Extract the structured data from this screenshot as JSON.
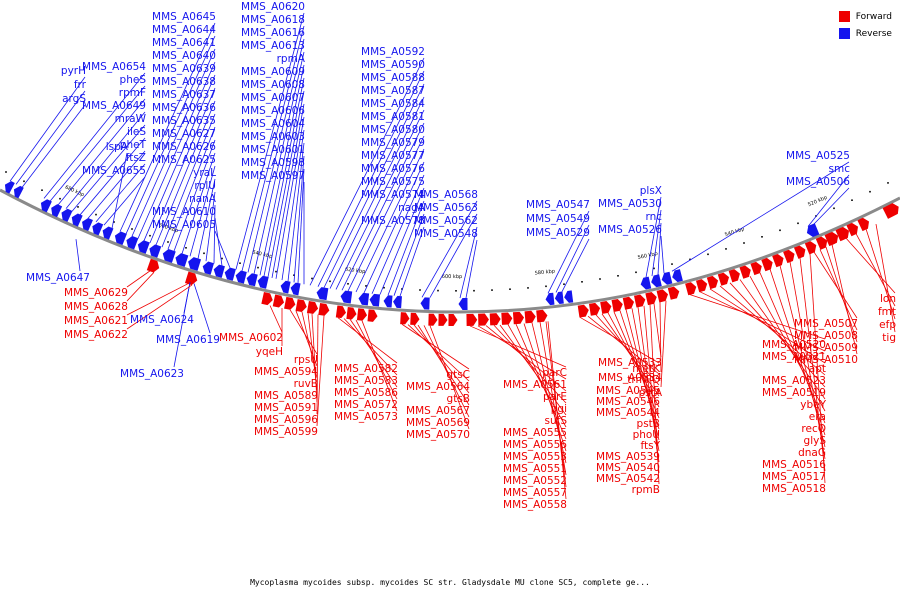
{
  "legend": {
    "forward": {
      "label": "Forward",
      "color": "#ee0000"
    },
    "reverse": {
      "label": "Reverse",
      "color": "#1515ee"
    }
  },
  "caption": "Mycoplasma mycoides subsp. mycoides SC str. Gladysdale MU clone SC5, complete ge...",
  "scale_ticks": [
    "520 kbp",
    "540 kbp",
    "560 kbp",
    "580 kbp",
    "600 kbp",
    "620 kbp",
    "640 kbp",
    "660 kbp",
    "680 kbp"
  ],
  "reverse_genes_above": [
    "pyrH",
    "frr",
    "argS",
    "MMS_A0654",
    "pheS",
    "rpmF",
    "MMS_A0649",
    "mraW",
    "ileS",
    "pheT",
    "ftsZ",
    "MMS_A0655",
    "lspA",
    "MMS_A0645",
    "MMS_A0644",
    "MMS_A0641",
    "MMS_A0640",
    "MMS_A0639",
    "MMS_A0638",
    "MMS_A0637",
    "MMS_A0636",
    "MMS_A0635",
    "MMS_A0627",
    "MMS_A0626",
    "MMS_A0625",
    "yraL",
    "rplU",
    "nanA",
    "MMS_A0610",
    "MMS_A0605",
    "MMS_A0620",
    "MMS_A0618",
    "MMS_A0616",
    "MMS_A0613",
    "rpmA",
    "MMS_A0609",
    "MMS_A0608",
    "MMS_A0607",
    "MMS_A0606",
    "MMS_A0604",
    "MMS_A0603",
    "MMS_A0601",
    "MMS_A0598",
    "MMS_A0597",
    "MMS_A0592",
    "MMS_A0590",
    "MMS_A0588",
    "MMS_A0587",
    "MMS_A0584",
    "MMS_A0581",
    "MMS_A0580",
    "MMS_A0579",
    "MMS_A0577",
    "MMS_A0576",
    "MMS_A0575",
    "MMS_A0574",
    "nagA",
    "MMS_A0578",
    "MMS_A0568",
    "MMS_A0563",
    "MMS_A0562",
    "MMS_A0548",
    "MMS_A0547",
    "MMS_A0549",
    "MMS_A0529",
    "plsX",
    "MMS_A0530",
    "rnc",
    "MMS_A0526",
    "MMS_A0525",
    "smc",
    "MMS_A0506"
  ],
  "reverse_genes_below": [
    "MMS_A0647",
    "MMS_A0624",
    "MMS_A0619",
    "MMS_A0623"
  ],
  "forward_genes_below": [
    "MMS_A0629",
    "MMS_A0628",
    "MMS_A0621",
    "MMS_A0622",
    "MMS_A0602",
    "yqeH",
    "rpsU",
    "MMS_A0594",
    "ruvB",
    "MMS_A0589",
    "MMS_A0591",
    "MMS_A0596",
    "MMS_A0599",
    "MMS_A0582",
    "MMS_A0583",
    "MMS_A0586",
    "MMS_A0572",
    "MMS_A0573",
    "gtsC",
    "MMS_A0564",
    "gtsB",
    "MMS_A0567",
    "MMS_A0569",
    "MMS_A0570",
    "parC",
    "MMS_A0561",
    "parE",
    "pgi",
    "sufS",
    "MMS_A0555",
    "MMS_A0556",
    "MMS_A0553",
    "MMS_A0551",
    "MMS_A0552",
    "MMS_A0557",
    "MMS_A0558",
    "metK",
    "trmFO",
    "MMS_A0545",
    "MMS_A0546",
    "MMS_A0544",
    "pstB",
    "phoU",
    "ftsY",
    "MMS_A0539",
    "MMS_A0540",
    "MMS_A0542",
    "rpmB",
    "MMS_A0533",
    "MMS_A0534",
    "pstA",
    "MMS_A0520",
    "MMS_A0521",
    "apt",
    "MMS_A0523",
    "MMS_A0519",
    "ybeY",
    "era",
    "recO",
    "glyS",
    "dnaG",
    "MMS_A0516",
    "MMS_A0517",
    "MMS_A0518",
    "MMS_A0507",
    "MMS_A0508",
    "MMS_A0509",
    "MMS_A0510",
    "lon",
    "fmt",
    "efp",
    "tig"
  ]
}
